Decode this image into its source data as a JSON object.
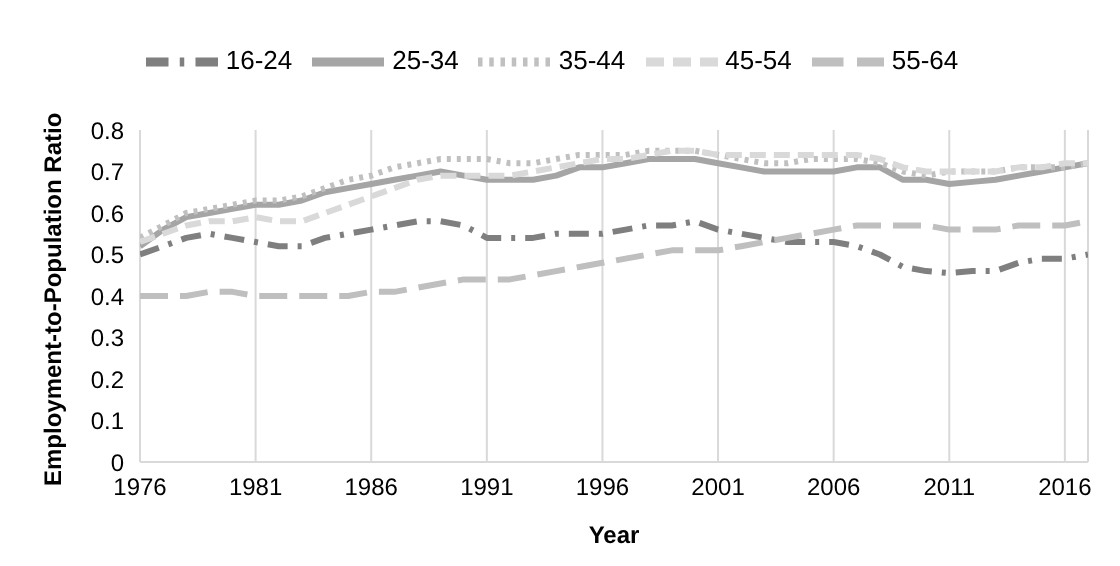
{
  "chart_data": {
    "type": "line",
    "xlabel": "Year",
    "ylabel": "Employment-to-Population Ratio",
    "x": [
      1976,
      1977,
      1978,
      1979,
      1980,
      1981,
      1982,
      1983,
      1984,
      1985,
      1986,
      1987,
      1988,
      1989,
      1990,
      1991,
      1992,
      1993,
      1994,
      1995,
      1996,
      1997,
      1998,
      1999,
      2000,
      2001,
      2002,
      2003,
      2004,
      2005,
      2006,
      2007,
      2008,
      2009,
      2010,
      2011,
      2012,
      2013,
      2014,
      2015,
      2016,
      2017
    ],
    "series": [
      {
        "name": "16-24",
        "color": "#7f7f7f",
        "line_style": "dashdot",
        "values": [
          0.5,
          0.52,
          0.54,
          0.55,
          0.54,
          0.53,
          0.52,
          0.52,
          0.54,
          0.55,
          0.56,
          0.57,
          0.58,
          0.58,
          0.57,
          0.54,
          0.54,
          0.54,
          0.55,
          0.55,
          0.55,
          0.56,
          0.57,
          0.57,
          0.58,
          0.56,
          0.55,
          0.54,
          0.53,
          0.53,
          0.53,
          0.52,
          0.5,
          0.47,
          0.46,
          0.455,
          0.46,
          0.46,
          0.48,
          0.49,
          0.49,
          0.5
        ]
      },
      {
        "name": "25-34",
        "color": "#a5a5a5",
        "line_style": "solid",
        "values": [
          0.52,
          0.56,
          0.59,
          0.6,
          0.61,
          0.62,
          0.62,
          0.63,
          0.65,
          0.66,
          0.67,
          0.68,
          0.69,
          0.7,
          0.69,
          0.68,
          0.68,
          0.68,
          0.69,
          0.71,
          0.71,
          0.72,
          0.73,
          0.73,
          0.73,
          0.72,
          0.71,
          0.7,
          0.7,
          0.7,
          0.7,
          0.71,
          0.71,
          0.68,
          0.68,
          0.67,
          0.675,
          0.68,
          0.69,
          0.7,
          0.71,
          0.72
        ]
      },
      {
        "name": "35-44",
        "color": "#c0c0c0",
        "line_style": "dotted",
        "values": [
          0.54,
          0.57,
          0.6,
          0.61,
          0.62,
          0.63,
          0.63,
          0.64,
          0.66,
          0.68,
          0.69,
          0.71,
          0.72,
          0.73,
          0.73,
          0.73,
          0.72,
          0.72,
          0.73,
          0.74,
          0.74,
          0.74,
          0.75,
          0.75,
          0.75,
          0.74,
          0.73,
          0.72,
          0.72,
          0.73,
          0.73,
          0.73,
          0.72,
          0.7,
          0.69,
          0.7,
          0.7,
          0.7,
          0.71,
          0.71,
          0.71,
          0.72
        ]
      },
      {
        "name": "45-54",
        "color": "#d9d9d9",
        "line_style": "dashed",
        "values": [
          0.53,
          0.55,
          0.57,
          0.58,
          0.58,
          0.59,
          0.58,
          0.58,
          0.6,
          0.62,
          0.64,
          0.66,
          0.68,
          0.69,
          0.69,
          0.69,
          0.69,
          0.7,
          0.71,
          0.72,
          0.73,
          0.73,
          0.74,
          0.75,
          0.75,
          0.74,
          0.74,
          0.74,
          0.74,
          0.74,
          0.74,
          0.74,
          0.73,
          0.71,
          0.7,
          0.7,
          0.7,
          0.7,
          0.71,
          0.71,
          0.72,
          0.72
        ]
      },
      {
        "name": "55-64",
        "color": "#bfbfbf",
        "line_style": "dashed",
        "values": [
          0.4,
          0.4,
          0.4,
          0.41,
          0.41,
          0.4,
          0.4,
          0.4,
          0.4,
          0.4,
          0.41,
          0.41,
          0.42,
          0.43,
          0.44,
          0.44,
          0.44,
          0.45,
          0.46,
          0.47,
          0.48,
          0.49,
          0.5,
          0.51,
          0.51,
          0.51,
          0.52,
          0.53,
          0.54,
          0.55,
          0.56,
          0.57,
          0.57,
          0.57,
          0.57,
          0.56,
          0.56,
          0.56,
          0.57,
          0.57,
          0.57,
          0.58
        ]
      }
    ],
    "xlim": [
      1976,
      2017
    ],
    "xticks": [
      1976,
      1981,
      1986,
      1991,
      1996,
      2001,
      2006,
      2011,
      2016
    ],
    "ylim": [
      0,
      0.8
    ],
    "yticks": [
      0,
      0.1,
      0.2,
      0.3,
      0.4,
      0.5,
      0.6,
      0.7,
      0.8
    ],
    "grid": "x",
    "legend": "top",
    "marker": "none"
  }
}
